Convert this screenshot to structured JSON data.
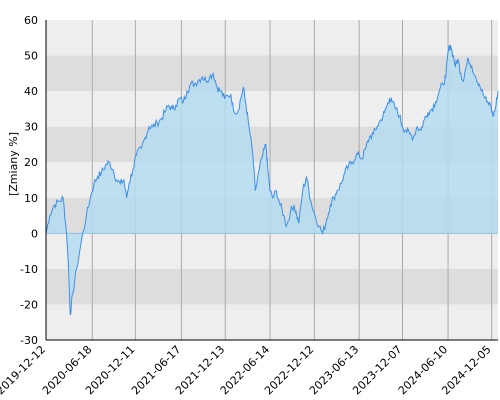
{
  "chart_data": {
    "type": "area",
    "title": "",
    "xlabel": "",
    "ylabel": "[Zmiany %]",
    "ylim": [
      -30,
      60
    ],
    "yticks": [
      "60",
      "50",
      "40",
      "30",
      "20",
      "10",
      "0",
      "-10",
      "-20",
      "-30"
    ],
    "xticks": [
      "2019-12-12",
      "2020-06-18",
      "2020-12-11",
      "2021-06-17",
      "2021-12-13",
      "2022-06-14",
      "2022-12-12",
      "2023-06-13",
      "2023-12-07",
      "2024-06-10",
      "2024-12-05"
    ],
    "x_range": [
      "2019-12-12",
      "2024-12-31"
    ],
    "grid": true,
    "colors": {
      "line": "#3c8fe8",
      "fill": "#b4dcf0",
      "band_light": "#eeeeee",
      "band_dark": "#dddddd",
      "zero_line": "#8fc3e6",
      "vgrid": "#aaaaaa",
      "axis": "#000000"
    },
    "series": [
      {
        "points": [
          [
            "2019-12-12",
            0
          ],
          [
            "2019-12-27",
            5
          ],
          [
            "2020-01-15",
            8
          ],
          [
            "2020-02-05",
            9
          ],
          [
            "2020-02-20",
            10
          ],
          [
            "2020-03-05",
            0
          ],
          [
            "2020-03-12",
            -8
          ],
          [
            "2020-03-20",
            -23
          ],
          [
            "2020-03-30",
            -17
          ],
          [
            "2020-04-15",
            -10
          ],
          [
            "2020-05-05",
            -2
          ],
          [
            "2020-05-25",
            5
          ],
          [
            "2020-06-10",
            10
          ],
          [
            "2020-06-25",
            14
          ],
          [
            "2020-07-10",
            16
          ],
          [
            "2020-07-25",
            17
          ],
          [
            "2020-08-10",
            19
          ],
          [
            "2020-08-25",
            20
          ],
          [
            "2020-09-10",
            18
          ],
          [
            "2020-09-25",
            15
          ],
          [
            "2020-10-10",
            14
          ],
          [
            "2020-10-25",
            15
          ],
          [
            "2020-11-05",
            10
          ],
          [
            "2020-11-15",
            14
          ],
          [
            "2020-12-01",
            18
          ],
          [
            "2020-12-15",
            22
          ],
          [
            "2021-01-05",
            24
          ],
          [
            "2021-01-20",
            27
          ],
          [
            "2021-02-05",
            30
          ],
          [
            "2021-02-20",
            30
          ],
          [
            "2021-03-10",
            31
          ],
          [
            "2021-03-25",
            32
          ],
          [
            "2021-04-10",
            34
          ],
          [
            "2021-04-25",
            36
          ],
          [
            "2021-05-10",
            35
          ],
          [
            "2021-05-25",
            36
          ],
          [
            "2021-06-10",
            38
          ],
          [
            "2021-06-25",
            37
          ],
          [
            "2021-07-10",
            40
          ],
          [
            "2021-07-25",
            42
          ],
          [
            "2021-08-10",
            42
          ],
          [
            "2021-08-25",
            43
          ],
          [
            "2021-09-10",
            44
          ],
          [
            "2021-09-25",
            43
          ],
          [
            "2021-10-10",
            44
          ],
          [
            "2021-10-25",
            45
          ],
          [
            "2021-11-10",
            41
          ],
          [
            "2021-11-25",
            40
          ],
          [
            "2021-12-10",
            38
          ],
          [
            "2022-01-05",
            39
          ],
          [
            "2022-01-15",
            35
          ],
          [
            "2022-02-01",
            34
          ],
          [
            "2022-02-15",
            38
          ],
          [
            "2022-02-25",
            41
          ],
          [
            "2022-03-08",
            36
          ],
          [
            "2022-03-20",
            30
          ],
          [
            "2022-04-05",
            22
          ],
          [
            "2022-04-15",
            12
          ],
          [
            "2022-05-01",
            18
          ],
          [
            "2022-05-15",
            22
          ],
          [
            "2022-05-28",
            25
          ],
          [
            "2022-06-05",
            18
          ],
          [
            "2022-06-14",
            12
          ],
          [
            "2022-06-25",
            10
          ],
          [
            "2022-07-10",
            12
          ],
          [
            "2022-07-25",
            8
          ],
          [
            "2022-08-10",
            5
          ],
          [
            "2022-08-20",
            2
          ],
          [
            "2022-09-05",
            6
          ],
          [
            "2022-09-20",
            8
          ],
          [
            "2022-10-01",
            5
          ],
          [
            "2022-10-10",
            3
          ],
          [
            "2022-10-25",
            12
          ],
          [
            "2022-11-10",
            16
          ],
          [
            "2022-11-20",
            12
          ],
          [
            "2022-12-01",
            8
          ],
          [
            "2022-12-15",
            5
          ],
          [
            "2023-01-01",
            2
          ],
          [
            "2023-01-15",
            0
          ],
          [
            "2023-02-01",
            4
          ],
          [
            "2023-02-15",
            8
          ],
          [
            "2023-03-01",
            10
          ],
          [
            "2023-03-15",
            12
          ],
          [
            "2023-04-01",
            14
          ],
          [
            "2023-04-15",
            17
          ],
          [
            "2023-05-01",
            19
          ],
          [
            "2023-05-15",
            20
          ],
          [
            "2023-06-01",
            22
          ],
          [
            "2023-06-13",
            22
          ],
          [
            "2023-06-25",
            21
          ],
          [
            "2023-07-10",
            24
          ],
          [
            "2023-07-25",
            27
          ],
          [
            "2023-08-10",
            28
          ],
          [
            "2023-08-25",
            30
          ],
          [
            "2023-09-10",
            32
          ],
          [
            "2023-09-25",
            34
          ],
          [
            "2023-10-05",
            36
          ],
          [
            "2023-10-15",
            38
          ],
          [
            "2023-10-25",
            37
          ],
          [
            "2023-11-10",
            35
          ],
          [
            "2023-11-25",
            33
          ],
          [
            "2023-12-07",
            30
          ],
          [
            "2023-12-20",
            29
          ],
          [
            "2024-01-05",
            28
          ],
          [
            "2024-01-20",
            27
          ],
          [
            "2024-02-05",
            30
          ],
          [
            "2024-02-20",
            29
          ],
          [
            "2024-03-05",
            32
          ],
          [
            "2024-03-20",
            34
          ],
          [
            "2024-04-05",
            35
          ],
          [
            "2024-04-20",
            37
          ],
          [
            "2024-05-05",
            40
          ],
          [
            "2024-05-20",
            42
          ],
          [
            "2024-06-01",
            44
          ],
          [
            "2024-06-10",
            51
          ],
          [
            "2024-06-20",
            53
          ],
          [
            "2024-07-01",
            50
          ],
          [
            "2024-07-10",
            47
          ],
          [
            "2024-07-20",
            49
          ],
          [
            "2024-08-01",
            45
          ],
          [
            "2024-08-10",
            43
          ],
          [
            "2024-08-20",
            46
          ],
          [
            "2024-09-01",
            49
          ],
          [
            "2024-09-15",
            47
          ],
          [
            "2024-10-01",
            44
          ],
          [
            "2024-10-15",
            42
          ],
          [
            "2024-11-01",
            39
          ],
          [
            "2024-11-15",
            37
          ],
          [
            "2024-12-01",
            36
          ],
          [
            "2024-12-10",
            33
          ],
          [
            "2024-12-20",
            35
          ],
          [
            "2024-12-31",
            40
          ]
        ]
      }
    ]
  }
}
